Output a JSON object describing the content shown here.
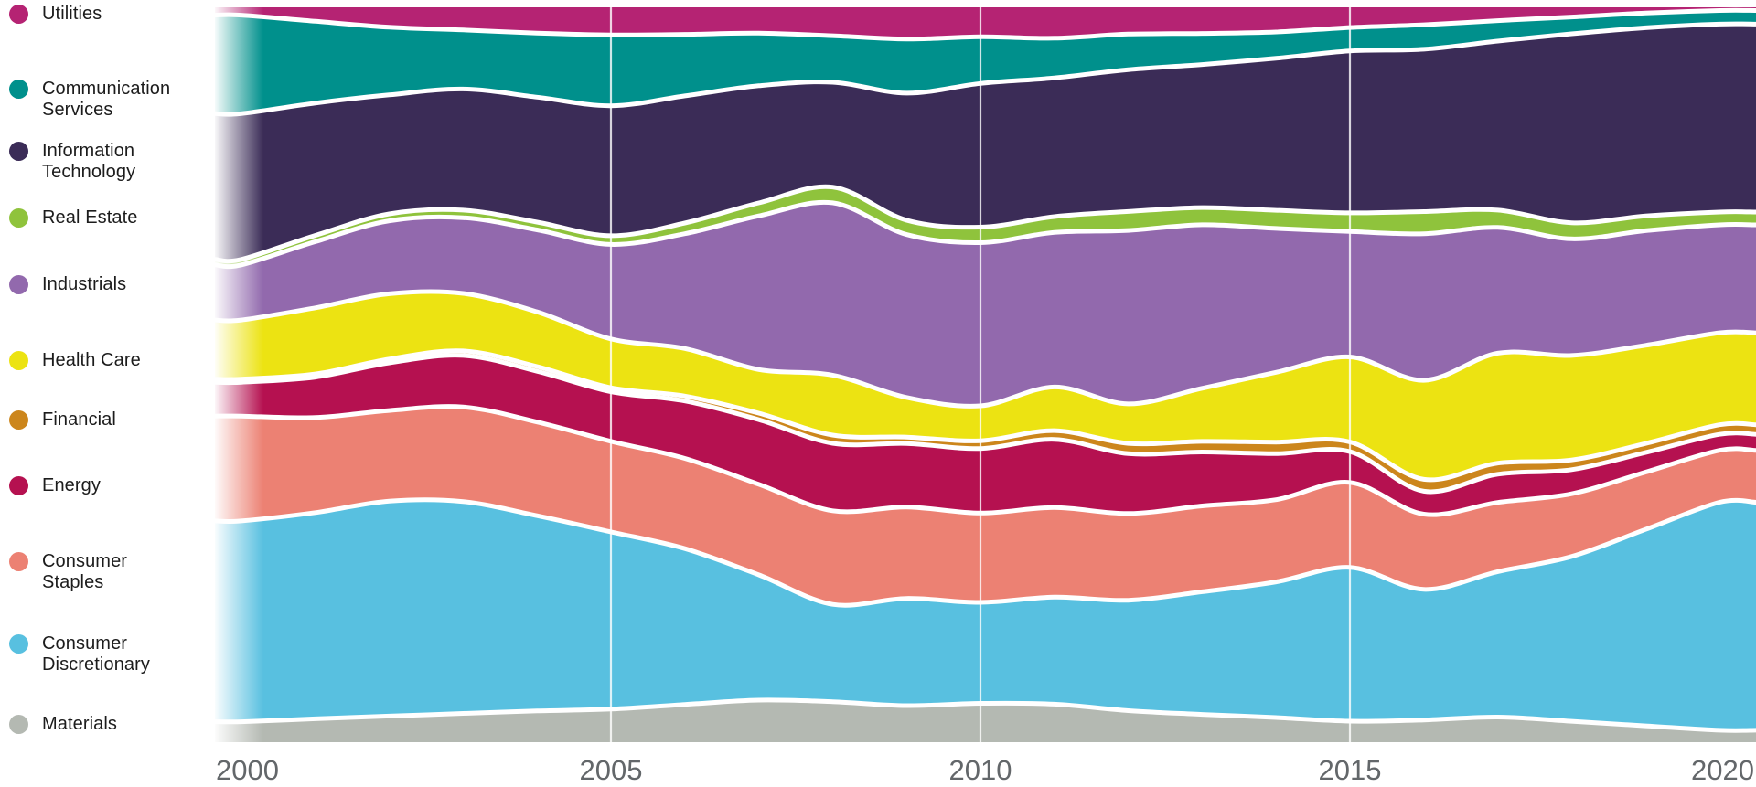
{
  "chart_data": {
    "type": "area",
    "variant": "stacked-area-100pct-share",
    "title": "",
    "xlabel": "",
    "ylabel": "",
    "x": [
      2000,
      2001,
      2002,
      2003,
      2004,
      2005,
      2006,
      2007,
      2008,
      2009,
      2010,
      2011,
      2012,
      2013,
      2014,
      2015,
      2016,
      2017,
      2018,
      2019,
      2020
    ],
    "xticks": [
      "2000",
      "2005",
      "2010",
      "2015",
      "2020"
    ],
    "gridlines_at_years": [
      2005,
      2010,
      2015
    ],
    "ylim": [
      0,
      100
    ],
    "units": "percent share of total (estimated from pixels)",
    "legend_position": "left",
    "grid": "vertical-white-lines",
    "series": [
      {
        "name": "Utilities",
        "color": "#b52373",
        "values": [
          1.0,
          1.8,
          2.6,
          3.0,
          3.3,
          3.5,
          3.3,
          3.2,
          3.8,
          4.0,
          3.8,
          3.9,
          3.4,
          3.2,
          3.0,
          2.5,
          2.2,
          1.7,
          1.2,
          0.7,
          0.4
        ]
      },
      {
        "name": "Communication Services",
        "color": "#00908c",
        "values": [
          12.5,
          10.5,
          8.8,
          7.8,
          8.2,
          9.0,
          7.5,
          6.5,
          6.2,
          6.8,
          6.0,
          5.0,
          4.5,
          3.8,
          3.2,
          2.9,
          3.1,
          2.6,
          2.1,
          1.8,
          1.7
        ]
      },
      {
        "name": "Information Technology",
        "color": "#3b2c57",
        "values": [
          18.5,
          17.0,
          15.5,
          16.0,
          16.0,
          16.5,
          15.5,
          14.5,
          14.0,
          16.0,
          18.5,
          17.5,
          18.0,
          17.5,
          18.5,
          20.0,
          20.5,
          21.5,
          23.5,
          23.0,
          23.5
        ]
      },
      {
        "name": "Real Estate",
        "color": "#8fc33c",
        "values": [
          0.7,
          0.8,
          0.9,
          1.0,
          1.0,
          1.1,
          1.3,
          1.6,
          2.1,
          1.8,
          2.0,
          2.0,
          2.4,
          2.1,
          2.2,
          2.3,
          2.8,
          2.2,
          2.0,
          1.8,
          1.6
        ]
      },
      {
        "name": "Industrials",
        "color": "#9269ad",
        "values": [
          7.0,
          8.5,
          9.5,
          10.0,
          10.5,
          12.0,
          14.0,
          19.0,
          23.0,
          20.5,
          21.0,
          19.5,
          22.0,
          20.0,
          17.5,
          15.5,
          18.5,
          16.0,
          14.5,
          14.0,
          13.5
        ]
      },
      {
        "name": "Health Care",
        "color": "#ece312",
        "values": [
          7.5,
          8.5,
          8.5,
          7.6,
          7.0,
          6.2,
          5.8,
          5.4,
          8.0,
          5.0,
          4.5,
          5.5,
          5.0,
          6.5,
          8.5,
          10.5,
          12.5,
          14.0,
          13.0,
          12.0,
          11.5
        ]
      },
      {
        "name": "Financial",
        "color": "#cc861c",
        "values": [
          0.4,
          0.4,
          0.5,
          0.6,
          0.6,
          0.5,
          0.6,
          0.8,
          1.1,
          0.8,
          1.0,
          1.1,
          1.3,
          1.3,
          1.4,
          1.2,
          1.5,
          1.4,
          1.2,
          1.1,
          1.2
        ]
      },
      {
        "name": "Energy",
        "color": "#b51150",
        "values": [
          4.3,
          5.2,
          6.2,
          6.8,
          6.5,
          6.3,
          7.0,
          8.0,
          9.0,
          8.0,
          8.3,
          8.6,
          7.6,
          6.6,
          5.6,
          3.8,
          2.9,
          3.6,
          3.0,
          2.4,
          2.0
        ]
      },
      {
        "name": "Consumer Staples",
        "color": "#ec8173",
        "values": [
          13.3,
          12.2,
          11.8,
          12.5,
          12.0,
          11.5,
          11.0,
          11.2,
          12.5,
          11.5,
          11.5,
          11.3,
          11.0,
          10.5,
          10.0,
          10.5,
          9.5,
          8.8,
          7.8,
          7.0,
          6.5
        ]
      },
      {
        "name": "Consumer Discretionary",
        "color": "#58c0e0",
        "values": [
          25.5,
          26.5,
          28.0,
          28.0,
          25.0,
          22.5,
          19.0,
          15.5,
          13.0,
          13.5,
          13.0,
          13.5,
          14.0,
          15.0,
          16.5,
          19.0,
          16.5,
          18.5,
          20.5,
          24.0,
          28.5
        ]
      },
      {
        "name": "Materials",
        "color": "#b4b9b2",
        "values": [
          2.6,
          3.0,
          3.4,
          3.8,
          4.0,
          4.2,
          4.6,
          5.2,
          5.4,
          4.6,
          5.0,
          4.8,
          4.0,
          3.4,
          3.0,
          2.6,
          2.8,
          3.2,
          2.6,
          2.0,
          1.5
        ]
      }
    ]
  },
  "legend": {
    "items": [
      {
        "label": "Utilities",
        "color": "#b52373"
      },
      {
        "label": "Communication Services",
        "color": "#00908c"
      },
      {
        "label": "Information Technology",
        "color": "#3b2c57"
      },
      {
        "label": "Real Estate",
        "color": "#8fc33c"
      },
      {
        "label": "Industrials",
        "color": "#9269ad"
      },
      {
        "label": "Health Care",
        "color": "#ece312"
      },
      {
        "label": "Financial",
        "color": "#cc861c"
      },
      {
        "label": "Energy",
        "color": "#b51150"
      },
      {
        "label": "Consumer Staples",
        "color": "#ec8173"
      },
      {
        "label": "Consumer Discretionary",
        "color": "#58c0e0"
      },
      {
        "label": "Materials",
        "color": "#b4b9b2"
      }
    ]
  },
  "axis": {
    "tick_labels": [
      "2000",
      "2005",
      "2010",
      "2015",
      "2020"
    ],
    "label_color": "#63676a"
  },
  "style_colors": {
    "background": "#ffffff",
    "separator": "#ffffff",
    "gridline": "#ffffff",
    "legend_text": "#1c1c1c"
  }
}
